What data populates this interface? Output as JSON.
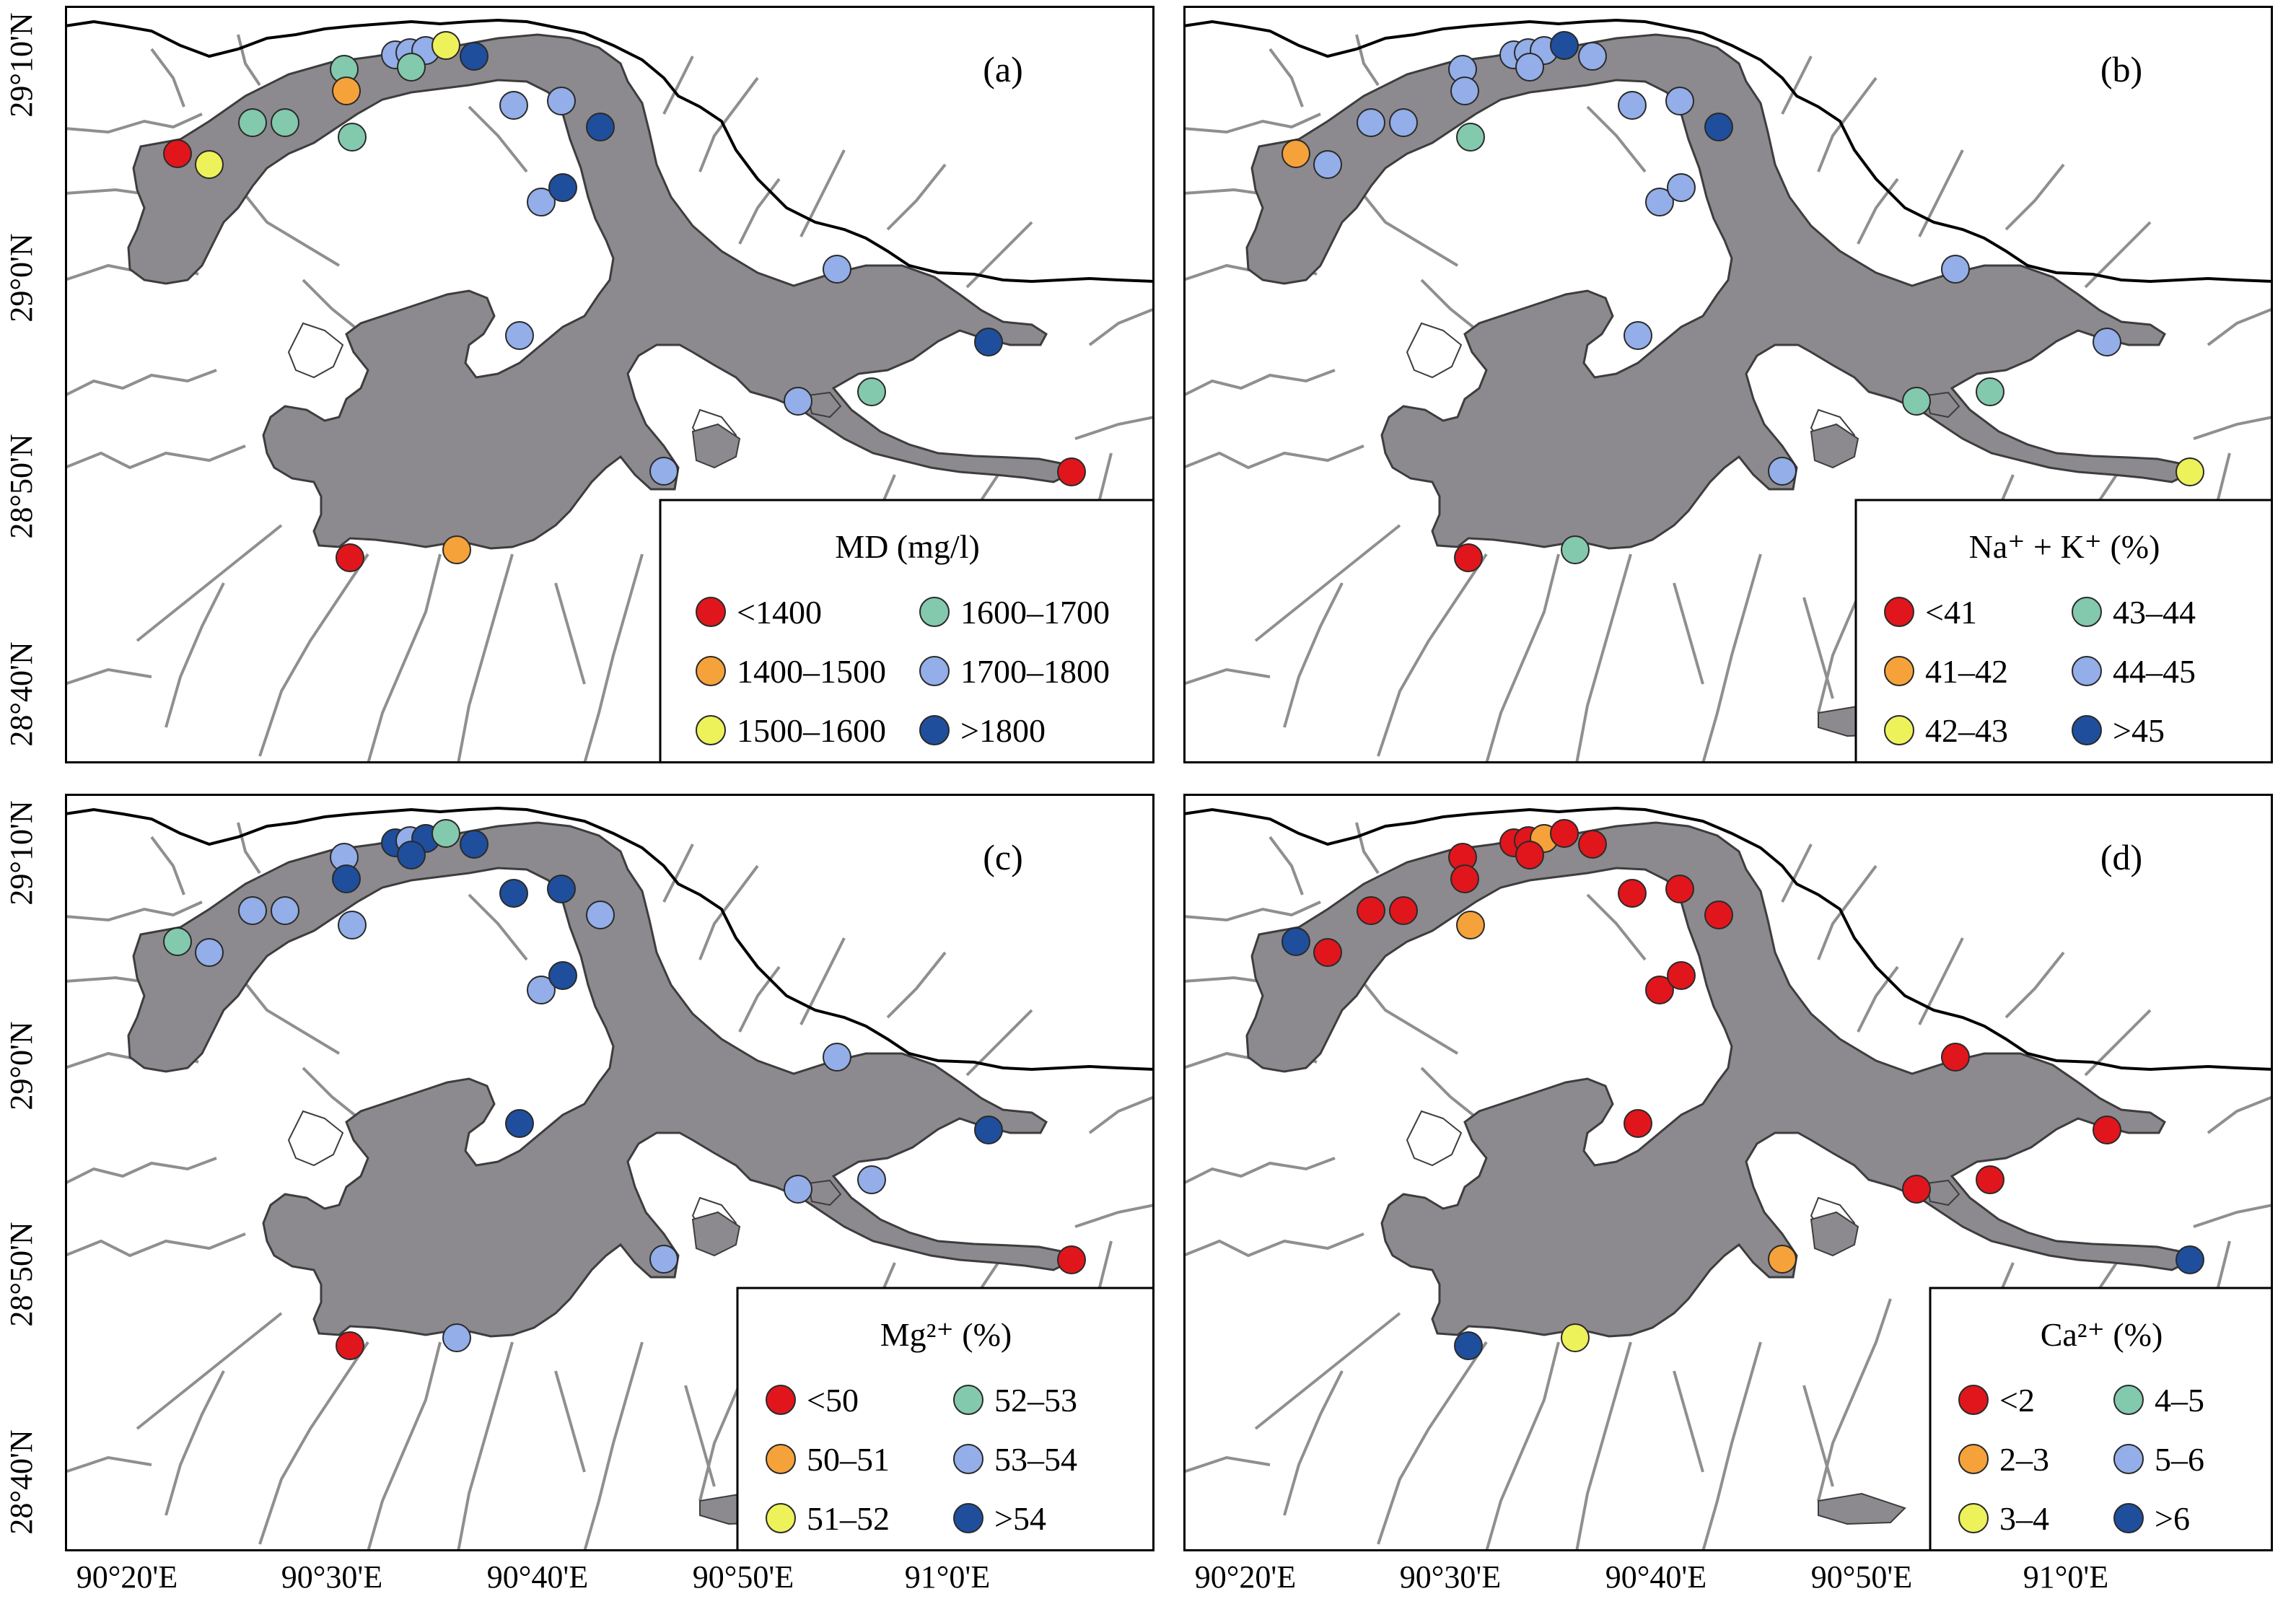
{
  "lat_labels": [
    "29°10'N",
    "29°0'N",
    "28°50'N",
    "28°40'N"
  ],
  "lon_labels": [
    "90°20'E",
    "90°30'E",
    "90°40'E",
    "90°50'E",
    "91°0'E"
  ],
  "colors": {
    "red": "#e0161c",
    "orange": "#f6a23a",
    "yellow": "#eef25a",
    "teal": "#83c9ad",
    "lightblue": "#93aee8",
    "darkblue": "#1f4e9c",
    "lake": "#8c8a8e",
    "river": "#8f8f8f",
    "border": "#000000"
  },
  "panels": [
    {
      "id": "a",
      "label": "(a)",
      "legend_title": "MD (mg/l)",
      "legend": [
        {
          "label": "<1400",
          "color": "red"
        },
        {
          "label": "1400–1500",
          "color": "orange"
        },
        {
          "label": "1500–1600",
          "color": "yellow"
        },
        {
          "label": "1600–1700",
          "color": "teal"
        },
        {
          "label": "1700–1800",
          "color": "lightblue"
        },
        {
          "label": ">1800",
          "color": "darkblue"
        }
      ],
      "sites": [
        "red",
        "yellow",
        "teal",
        "teal",
        "teal",
        "orange",
        "teal",
        "lightblue",
        "lightblue",
        "lightblue",
        "yellow",
        "teal",
        "darkblue",
        "lightblue",
        "lightblue",
        "darkblue",
        "lightblue",
        "darkblue",
        "lightblue",
        "lightblue",
        "teal",
        "darkblue",
        "lightblue",
        "red",
        "red",
        "orange",
        "lightblue"
      ]
    },
    {
      "id": "b",
      "label": "(b)",
      "legend_title": "Na⁺ + K⁺ (%)",
      "legend": [
        {
          "label": "<41",
          "color": "red"
        },
        {
          "label": "41–42",
          "color": "orange"
        },
        {
          "label": "42–43",
          "color": "yellow"
        },
        {
          "label": "43–44",
          "color": "teal"
        },
        {
          "label": "44–45",
          "color": "lightblue"
        },
        {
          "label": ">45",
          "color": "darkblue"
        }
      ],
      "sites": [
        "orange",
        "lightblue",
        "lightblue",
        "lightblue",
        "lightblue",
        "lightblue",
        "teal",
        "lightblue",
        "lightblue",
        "lightblue",
        "darkblue",
        "lightblue",
        "lightblue",
        "lightblue",
        "lightblue",
        "darkblue",
        "lightblue",
        "lightblue",
        "lightblue",
        "lightblue",
        "teal",
        "lightblue",
        "teal",
        "yellow",
        "red",
        "teal",
        "lightblue"
      ]
    },
    {
      "id": "c",
      "label": "(c)",
      "legend_title": "Mg²⁺ (%)",
      "legend": [
        {
          "label": "<50",
          "color": "red"
        },
        {
          "label": "50–51",
          "color": "orange"
        },
        {
          "label": "51–52",
          "color": "yellow"
        },
        {
          "label": "52–53",
          "color": "teal"
        },
        {
          "label": "53–54",
          "color": "lightblue"
        },
        {
          "label": ">54",
          "color": "darkblue"
        }
      ],
      "sites": [
        "teal",
        "lightblue",
        "lightblue",
        "lightblue",
        "lightblue",
        "darkblue",
        "lightblue",
        "darkblue",
        "lightblue",
        "darkblue",
        "teal",
        "darkblue",
        "darkblue",
        "darkblue",
        "darkblue",
        "lightblue",
        "lightblue",
        "darkblue",
        "darkblue",
        "lightblue",
        "lightblue",
        "darkblue",
        "lightblue",
        "red",
        "red",
        "lightblue",
        "lightblue"
      ]
    },
    {
      "id": "d",
      "label": "(d)",
      "legend_title": "Ca²⁺ (%)",
      "legend": [
        {
          "label": "<2",
          "color": "red"
        },
        {
          "label": "2–3",
          "color": "orange"
        },
        {
          "label": "3–4",
          "color": "yellow"
        },
        {
          "label": "4–5",
          "color": "teal"
        },
        {
          "label": "5–6",
          "color": "lightblue"
        },
        {
          "label": ">6",
          "color": "darkblue"
        }
      ],
      "sites": [
        "darkblue",
        "red",
        "red",
        "red",
        "red",
        "red",
        "orange",
        "red",
        "red",
        "orange",
        "red",
        "red",
        "red",
        "red",
        "red",
        "red",
        "red",
        "red",
        "red",
        "red",
        "red",
        "red",
        "red",
        "darkblue",
        "darkblue",
        "yellow",
        "orange"
      ]
    }
  ]
}
